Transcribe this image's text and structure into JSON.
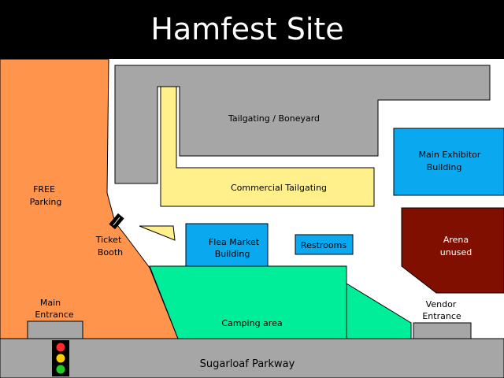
{
  "title": "Hamfest Site",
  "colors": {
    "header": "#000000",
    "parking": "#ff944d",
    "tailgating": "#a6a6a6",
    "commercial": "#fff08c",
    "exhibitor": "#0aa8ee",
    "arena": "#800f00",
    "camping": "#00ee99",
    "road": "#a6a6a6"
  },
  "areas": {
    "free_parking": [
      "FREE",
      "Parking"
    ],
    "tailgating": "Tailgating / Boneyard",
    "commercial": "Commercial Tailgating",
    "main_exhibitor": [
      "Main Exhibitor",
      "Building"
    ],
    "arena": [
      "Arena",
      "unused"
    ],
    "flea_market": [
      "Flea Market",
      "Building"
    ],
    "restrooms": "Restrooms",
    "ticket_booth": [
      "Ticket",
      "Booth"
    ],
    "camping": "Camping area",
    "main_entrance": [
      "Main",
      "Entrance"
    ],
    "vendor_entrance": [
      "Vendor",
      "Entrance"
    ],
    "road": "Sugarloaf Parkway"
  },
  "icons": {
    "traffic_light": "traffic-light-icon"
  }
}
